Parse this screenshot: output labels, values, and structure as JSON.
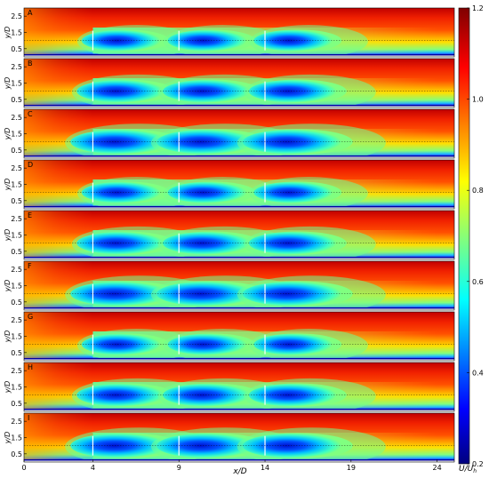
{
  "chart_data": {
    "type": "heatmap",
    "title": "",
    "xlabel": "x/D",
    "ylabel": "y/D",
    "colorbar_label_main": "U/U",
    "colorbar_label_sub": "h",
    "xlim": [
      0,
      25
    ],
    "ylim": [
      0,
      3
    ],
    "x_ticks": [
      0,
      4,
      9,
      14,
      19,
      24
    ],
    "y_ticks": [
      0.5,
      1.5,
      2.5
    ],
    "y_tick_labels": [
      "0.5",
      "1.5",
      "2.5"
    ],
    "hub_height_line_y": 1.0,
    "colorbar": {
      "min": 0.2,
      "max": 1.2,
      "ticks": [
        0.2,
        0.4,
        0.6,
        0.8,
        1.0,
        1.2
      ],
      "tick_labels": [
        "0.2",
        "0.4",
        "0.6",
        "0.8",
        "1.0",
        "1.2"
      ],
      "colormap": "jet"
    },
    "turbine_positions_xD": [
      4,
      9,
      14
    ],
    "panels": [
      {
        "label": "A",
        "wake_strength": 0.55
      },
      {
        "label": "B",
        "wake_strength": 0.75
      },
      {
        "label": "C",
        "wake_strength": 1.0
      },
      {
        "label": "D",
        "wake_strength": 0.55
      },
      {
        "label": "E",
        "wake_strength": 0.75
      },
      {
        "label": "F",
        "wake_strength": 1.0
      },
      {
        "label": "G",
        "wake_strength": 0.55
      },
      {
        "label": "H",
        "wake_strength": 0.75
      },
      {
        "label": "I",
        "wake_strength": 1.0
      }
    ]
  }
}
